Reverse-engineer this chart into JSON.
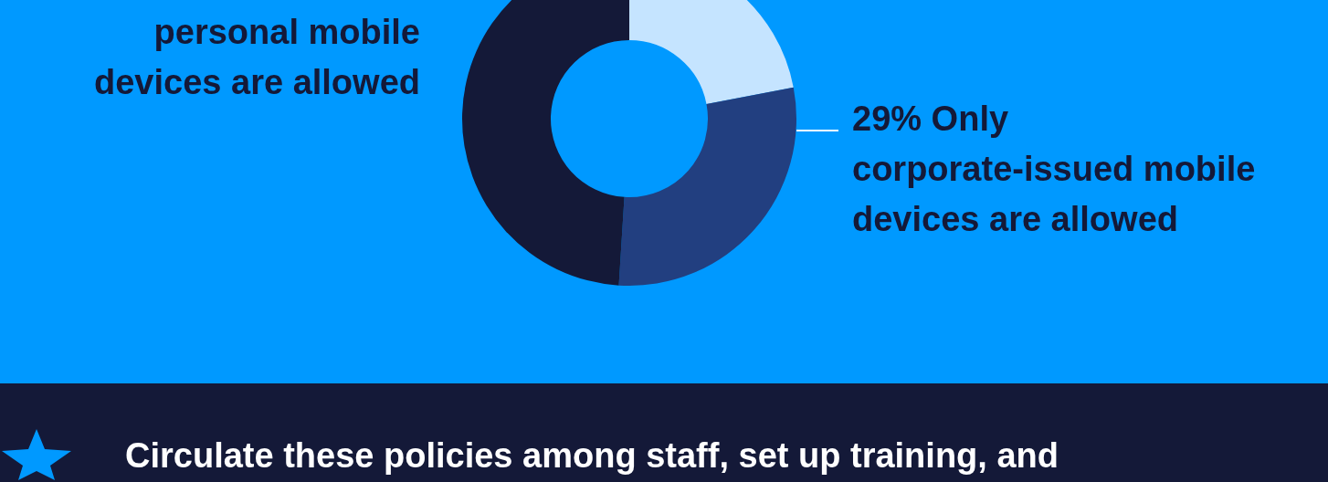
{
  "chart_data": {
    "type": "donut",
    "categories": [
      null,
      "Only corporate-issued mobile devices are allowed",
      "personal mobile devices are allowed"
    ],
    "values": [
      22,
      29,
      49
    ],
    "colors": [
      "#c5e4ff",
      "#223f80",
      "#141938"
    ],
    "value_labels": [
      null,
      "29%",
      null
    ],
    "annotations": [
      "Circulate these policies among staff, set up training, and"
    ]
  }
}
